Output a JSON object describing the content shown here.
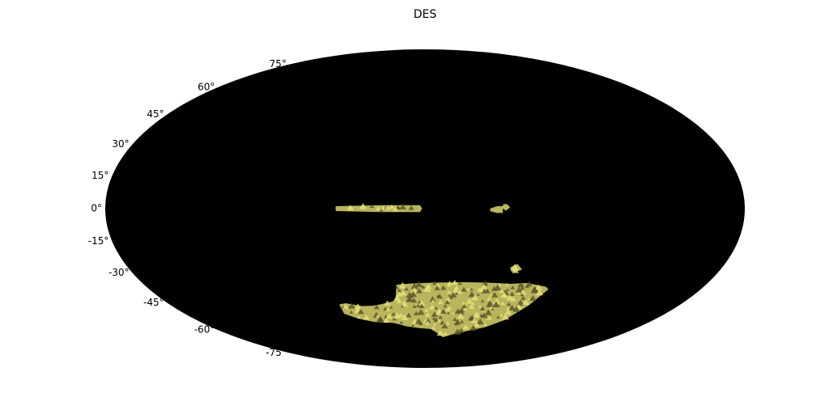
{
  "chart_data": {
    "type": "heatmap",
    "projection": "mollweide",
    "title": "DES",
    "background_color": "#000000",
    "fill_color": "#b8b55c",
    "highlight_color": "#e6e27a",
    "shadow_color": "#56542a",
    "grid": false,
    "xlabel": "",
    "ylabel": "",
    "ylim": [
      -90,
      90
    ],
    "y_ticks": [
      {
        "value": 75,
        "label": "75°"
      },
      {
        "value": 60,
        "label": "60°"
      },
      {
        "value": 45,
        "label": "45°"
      },
      {
        "value": 30,
        "label": "30°"
      },
      {
        "value": 15,
        "label": "15°"
      },
      {
        "value": 0,
        "label": "0°"
      },
      {
        "value": -15,
        "label": "-15°"
      },
      {
        "value": -30,
        "label": "-30°"
      },
      {
        "value": -45,
        "label": "-45°"
      },
      {
        "value": -60,
        "label": "-60°"
      },
      {
        "value": -75,
        "label": "-75°"
      }
    ],
    "regions": [
      {
        "id": "stripe82",
        "outline": [
          [
            -50,
            -0.8
          ],
          [
            -25,
            -1.3
          ],
          [
            -3,
            -1.3
          ],
          [
            -2,
            0
          ],
          [
            -3,
            1.3
          ],
          [
            -25,
            1.3
          ],
          [
            -50,
            0.8
          ]
        ]
      },
      {
        "id": "small-field-a",
        "outline": [
          [
            37,
            -1
          ],
          [
            40.5,
            -1.7
          ],
          [
            43.5,
            -1.7
          ],
          [
            43.5,
            0.8
          ],
          [
            40.5,
            0.8
          ],
          [
            37,
            -0.2
          ]
        ]
      },
      {
        "id": "small-field-b",
        "outline": [
          [
            43.5,
            0.6
          ],
          [
            45.5,
            -0.6
          ],
          [
            47.5,
            0.6
          ],
          [
            46,
            1.8
          ],
          [
            44.5,
            1.8
          ]
        ]
      },
      {
        "id": "small-field-c",
        "outline": [
          [
            52,
            -27.5
          ],
          [
            55.5,
            -26
          ],
          [
            58.5,
            -28.2
          ],
          [
            55,
            -29.3
          ],
          [
            53,
            -29
          ]
        ]
      },
      {
        "id": "des-wide",
        "outline": [
          [
            -18,
            -36
          ],
          [
            -10,
            -35.5
          ],
          [
            5,
            -35
          ],
          [
            25,
            -34.8
          ],
          [
            40,
            -35
          ],
          [
            55,
            -35.6
          ],
          [
            65,
            -35.2
          ],
          [
            78,
            -37
          ],
          [
            80,
            -38
          ],
          [
            73,
            -46
          ],
          [
            62,
            -54
          ],
          [
            50,
            -58
          ],
          [
            38,
            -60
          ],
          [
            26,
            -62
          ],
          [
            17,
            -64
          ],
          [
            10,
            -61
          ],
          [
            5,
            -59
          ],
          [
            -5,
            -58.5
          ],
          [
            -15,
            -57.5
          ],
          [
            -25,
            -55.5
          ],
          [
            -40,
            -55
          ],
          [
            -52,
            -53
          ],
          [
            -60,
            -50.5
          ],
          [
            -60,
            -46
          ],
          [
            -56,
            -45.5
          ],
          [
            -45,
            -47
          ],
          [
            -37,
            -46.8
          ],
          [
            -31,
            -46
          ],
          [
            -25,
            -45
          ],
          [
            -20,
            -44
          ]
        ]
      }
    ]
  }
}
